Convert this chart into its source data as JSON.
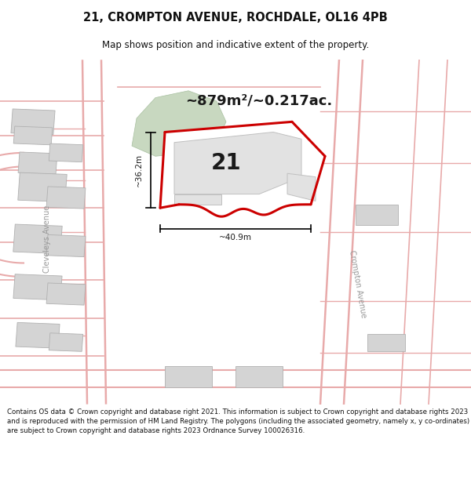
{
  "title": "21, CROMPTON AVENUE, ROCHDALE, OL16 4PB",
  "subtitle": "Map shows position and indicative extent of the property.",
  "area_label": "~879m²/~0.217ac.",
  "number_label": "21",
  "dim_width": "~40.9m",
  "dim_height": "~36.2m",
  "street_label_left": "Cleveleys Avenue",
  "street_label_right": "Crompton Avenue",
  "footer": "Contains OS data © Crown copyright and database right 2021. This information is subject to Crown copyright and database rights 2023 and is reproduced with the permission of HM Land Registry. The polygons (including the associated geometry, namely x, y co-ordinates) are subject to Crown copyright and database rights 2023 Ordnance Survey 100026316.",
  "bg_color": "#ffffff",
  "map_bg": "#f7f7f7",
  "property_edge": "#cc0000",
  "road_color": "#e8aaaa",
  "building_fill": "#d4d4d4",
  "building_edge": "#b0b0b0",
  "green_fill": "#c8d8c0",
  "green_edge": "#a8c0a0"
}
